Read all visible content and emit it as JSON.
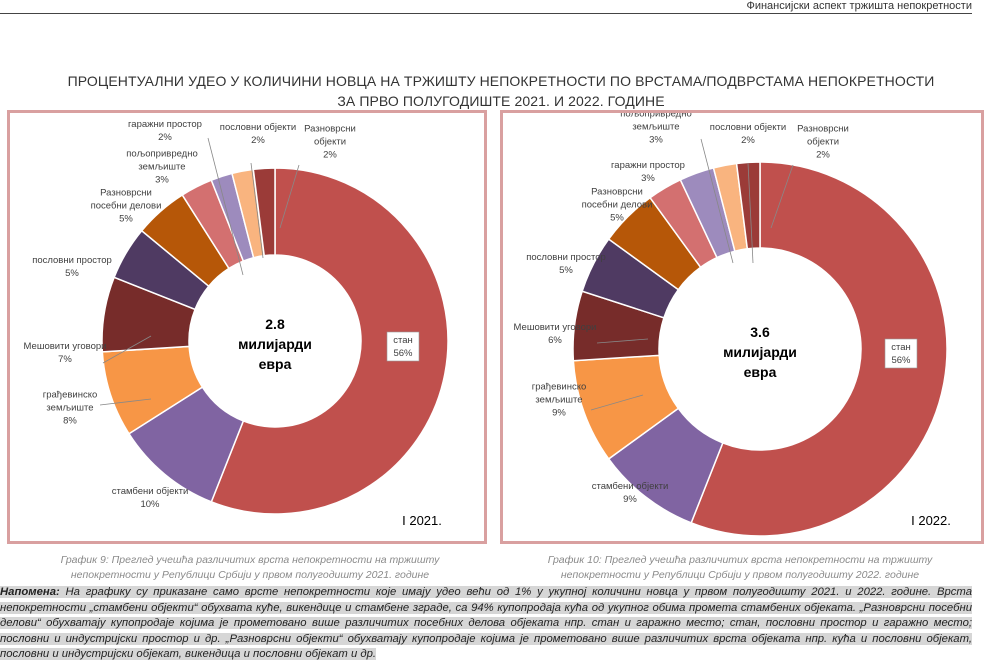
{
  "running_header": "Финансијски аспект тржишта непокретности",
  "title": {
    "line1": "ПРОЦЕНТУАЛНИ УДЕО У КОЛИЧИНИ НОВЦА НА ТРЖИШТУ НЕПОКРЕТНОСТИ ПО ВРСТАМА/ПОДВРСТАМА НЕПОКРЕТНОСТИ",
    "line2": "ЗА ПРВО ПОЛУГОДИШТЕ 2021. И 2022. ГОДИНЕ"
  },
  "chart_data": [
    {
      "type": "pie",
      "variant": "donut",
      "period_label": "I 2021.",
      "center_label": [
        "2.8",
        "милијарди",
        "евра"
      ],
      "slices": [
        {
          "name": "стан",
          "value": 56,
          "label": "56%",
          "color": "#c0504d"
        },
        {
          "name": "стамбени објекти",
          "value": 10,
          "label": "10%",
          "color": "#8064a2"
        },
        {
          "name": "грађевинско земљиште",
          "value": 8,
          "label": "8%",
          "color": "#f79646"
        },
        {
          "name": "Мешовити уговори",
          "value": 7,
          "label": "7%",
          "color": "#772c2a"
        },
        {
          "name": "пословни простор",
          "value": 5,
          "label": "5%",
          "color": "#4f3a62"
        },
        {
          "name": "Разноврсни посебни делови",
          "value": 5,
          "label": "5%",
          "color": "#b65708"
        },
        {
          "name": "пољопривредно земљиште",
          "value": 3,
          "label": "3%",
          "color": "#d37070"
        },
        {
          "name": "гаражни простор",
          "value": 2,
          "label": "2%",
          "color": "#9d8bbd"
        },
        {
          "name": "пословни објекти",
          "value": 2,
          "label": "2%",
          "color": "#f9b47f"
        },
        {
          "name": "Разноврсни објекти",
          "value": 2,
          "label": "2%",
          "color": "#9b3b38"
        }
      ]
    },
    {
      "type": "pie",
      "variant": "donut",
      "period_label": "I 2022.",
      "center_label": [
        "3.6",
        "милијарди",
        "евра"
      ],
      "slices": [
        {
          "name": "стан",
          "value": 56,
          "label": "56%",
          "color": "#c0504d"
        },
        {
          "name": "стамбени објекти",
          "value": 9,
          "label": "9%",
          "color": "#8064a2"
        },
        {
          "name": "грађевинско земљиште",
          "value": 9,
          "label": "9%",
          "color": "#f79646"
        },
        {
          "name": "Мешовити уговори",
          "value": 6,
          "label": "6%",
          "color": "#772c2a"
        },
        {
          "name": "пословни простор",
          "value": 5,
          "label": "5%",
          "color": "#4f3a62"
        },
        {
          "name": "Разноврсни посебни делови",
          "value": 5,
          "label": "5%",
          "color": "#b65708"
        },
        {
          "name": "гаражни простор",
          "value": 3,
          "label": "3%",
          "color": "#d37070"
        },
        {
          "name": "пољопривредно земљиште",
          "value": 3,
          "label": "3%",
          "color": "#9d8bbd"
        },
        {
          "name": "пословни објекти",
          "value": 2,
          "label": "2%",
          "color": "#f9b47f"
        },
        {
          "name": "Разноврсни објекти",
          "value": 2,
          "label": "2%",
          "color": "#9b3b38"
        }
      ]
    }
  ],
  "captions": {
    "chart1_line1": "График 9: Преглед учешћа различитих врста непокретности на тржишту",
    "chart1_line2": "непокретности у Републици Србији у првом полугодишту 2021. године",
    "chart2_line1": "График 10: Преглед учешћа различитих врста непокретности на тржишту",
    "chart2_line2": "непокретности у Републици Србији у првом полугодишту 2022. године"
  },
  "note": {
    "label": "Напомена:",
    "text": " На графику су приказане само врсте непокретности које имају удео већи од 1% у укупној количини новца у првом полугодишту 2021. и 2022. године. Врста непокретности „стамбени објекти“ обухвата куће, викендице и стамбене зграде, са 94% купопродаја кућа од укупног обима промета стамбених објеката. „Разноврсни посебни делови“ обухватају купопродаје којима је прометовано више различитих посебних делова објеката нпр. стан и гаражно место; стан, пословни простор и гаражно место; пословни и индустријски простор и др. „Разноврсни објекти“ обухватају купопродаје којима је прометовано више различитих врста објеката нпр. кућа и пословни објекат, пословни и индустријски објекат, викендица и пословни објекат и др."
  }
}
